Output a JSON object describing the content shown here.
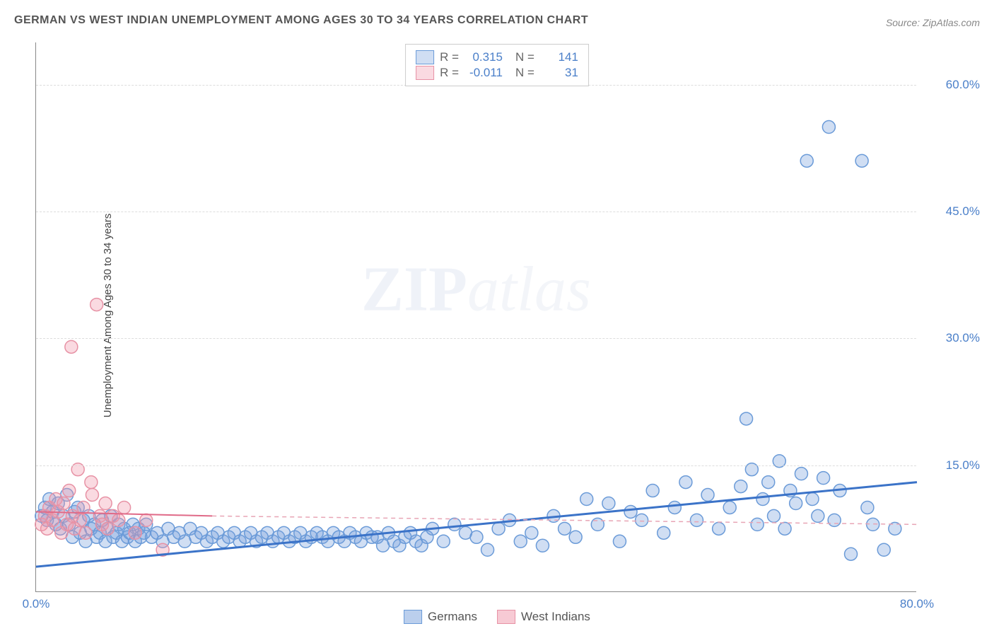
{
  "title": "GERMAN VS WEST INDIAN UNEMPLOYMENT AMONG AGES 30 TO 34 YEARS CORRELATION CHART",
  "source": "Source: ZipAtlas.com",
  "y_axis_label": "Unemployment Among Ages 30 to 34 years",
  "watermark_zip": "ZIP",
  "watermark_atlas": "atlas",
  "chart": {
    "type": "scatter",
    "xlim": [
      0,
      80
    ],
    "ylim": [
      0,
      65
    ],
    "x_ticks": [
      {
        "v": 0,
        "label": "0.0%"
      },
      {
        "v": 80,
        "label": "80.0%"
      }
    ],
    "y_ticks": [
      {
        "v": 15,
        "label": "15.0%"
      },
      {
        "v": 30,
        "label": "30.0%"
      },
      {
        "v": 45,
        "label": "45.0%"
      },
      {
        "v": 60,
        "label": "60.0%"
      }
    ],
    "grid_color": "#dddddd",
    "axis_color": "#888888",
    "background_color": "#ffffff",
    "marker_radius": 9,
    "marker_stroke_width": 1.5,
    "series": [
      {
        "name": "Germans",
        "fill": "rgba(120,160,220,0.35)",
        "stroke": "#6b9bd8",
        "r_label": "R =",
        "r_value": "0.315",
        "n_label": "N =",
        "n_value": "141",
        "trend_solid": {
          "x1": 0,
          "y1": 3,
          "x2": 80,
          "y2": 13,
          "color": "#3b73c8",
          "width": 3
        },
        "points": [
          [
            0.5,
            9
          ],
          [
            0.8,
            10
          ],
          [
            1,
            8.5
          ],
          [
            1.2,
            11
          ],
          [
            1.5,
            9.5
          ],
          [
            1.8,
            8
          ],
          [
            2,
            10.5
          ],
          [
            2.2,
            7.5
          ],
          [
            2.5,
            9
          ],
          [
            2.8,
            11.5
          ],
          [
            3,
            8
          ],
          [
            3.3,
            6.5
          ],
          [
            3.5,
            9.5
          ],
          [
            3.8,
            10
          ],
          [
            4,
            7
          ],
          [
            4.3,
            8.5
          ],
          [
            4.5,
            6
          ],
          [
            4.8,
            9
          ],
          [
            5,
            7.5
          ],
          [
            5.3,
            8
          ],
          [
            5.5,
            6.5
          ],
          [
            5.8,
            7
          ],
          [
            6,
            8.5
          ],
          [
            6.3,
            6
          ],
          [
            6.5,
            7.5
          ],
          [
            6.8,
            9
          ],
          [
            7,
            6.5
          ],
          [
            7.3,
            7
          ],
          [
            7.5,
            8
          ],
          [
            7.8,
            6
          ],
          [
            8,
            7.5
          ],
          [
            8.3,
            6.5
          ],
          [
            8.5,
            7
          ],
          [
            8.8,
            8
          ],
          [
            9,
            6
          ],
          [
            9.3,
            7.5
          ],
          [
            9.5,
            6.5
          ],
          [
            9.8,
            7
          ],
          [
            10,
            8
          ],
          [
            10.5,
            6.5
          ],
          [
            11,
            7
          ],
          [
            11.5,
            6
          ],
          [
            12,
            7.5
          ],
          [
            12.5,
            6.5
          ],
          [
            13,
            7
          ],
          [
            13.5,
            6
          ],
          [
            14,
            7.5
          ],
          [
            14.5,
            6.5
          ],
          [
            15,
            7
          ],
          [
            15.5,
            6
          ],
          [
            16,
            6.5
          ],
          [
            16.5,
            7
          ],
          [
            17,
            6
          ],
          [
            17.5,
            6.5
          ],
          [
            18,
            7
          ],
          [
            18.5,
            6
          ],
          [
            19,
            6.5
          ],
          [
            19.5,
            7
          ],
          [
            20,
            6
          ],
          [
            20.5,
            6.5
          ],
          [
            21,
            7
          ],
          [
            21.5,
            6
          ],
          [
            22,
            6.5
          ],
          [
            22.5,
            7
          ],
          [
            23,
            6
          ],
          [
            23.5,
            6.5
          ],
          [
            24,
            7
          ],
          [
            24.5,
            6
          ],
          [
            25,
            6.5
          ],
          [
            25.5,
            7
          ],
          [
            26,
            6.5
          ],
          [
            26.5,
            6
          ],
          [
            27,
            7
          ],
          [
            27.5,
            6.5
          ],
          [
            28,
            6
          ],
          [
            28.5,
            7
          ],
          [
            29,
            6.5
          ],
          [
            29.5,
            6
          ],
          [
            30,
            7
          ],
          [
            30.5,
            6.5
          ],
          [
            31,
            6.5
          ],
          [
            31.5,
            5.5
          ],
          [
            32,
            7
          ],
          [
            32.5,
            6
          ],
          [
            33,
            5.5
          ],
          [
            33.5,
            6.5
          ],
          [
            34,
            7
          ],
          [
            34.5,
            6
          ],
          [
            35,
            5.5
          ],
          [
            35.5,
            6.5
          ],
          [
            36,
            7.5
          ],
          [
            37,
            6
          ],
          [
            38,
            8
          ],
          [
            39,
            7
          ],
          [
            40,
            6.5
          ],
          [
            41,
            5
          ],
          [
            42,
            7.5
          ],
          [
            43,
            8.5
          ],
          [
            44,
            6
          ],
          [
            45,
            7
          ],
          [
            46,
            5.5
          ],
          [
            47,
            9
          ],
          [
            48,
            7.5
          ],
          [
            49,
            6.5
          ],
          [
            50,
            11
          ],
          [
            51,
            8
          ],
          [
            52,
            10.5
          ],
          [
            53,
            6
          ],
          [
            54,
            9.5
          ],
          [
            55,
            8.5
          ],
          [
            56,
            12
          ],
          [
            57,
            7
          ],
          [
            58,
            10
          ],
          [
            59,
            13
          ],
          [
            60,
            8.5
          ],
          [
            61,
            11.5
          ],
          [
            62,
            7.5
          ],
          [
            63,
            10
          ],
          [
            64,
            12.5
          ],
          [
            64.5,
            20.5
          ],
          [
            65,
            14.5
          ],
          [
            65.5,
            8
          ],
          [
            66,
            11
          ],
          [
            66.5,
            13
          ],
          [
            67,
            9
          ],
          [
            67.5,
            15.5
          ],
          [
            68,
            7.5
          ],
          [
            68.5,
            12
          ],
          [
            69,
            10.5
          ],
          [
            69.5,
            14
          ],
          [
            70,
            51
          ],
          [
            70.5,
            11
          ],
          [
            71,
            9
          ],
          [
            71.5,
            13.5
          ],
          [
            72,
            55
          ],
          [
            72.5,
            8.5
          ],
          [
            73,
            12
          ],
          [
            74,
            4.5
          ],
          [
            75,
            51
          ],
          [
            75.5,
            10
          ],
          [
            76,
            8
          ],
          [
            77,
            5
          ],
          [
            78,
            7.5
          ]
        ]
      },
      {
        "name": "West Indians",
        "fill": "rgba(240,150,170,0.35)",
        "stroke": "#e792a5",
        "r_label": "R =",
        "r_value": "-0.011",
        "n_label": "N =",
        "n_value": "31",
        "trend_solid": {
          "x1": 0,
          "y1": 9.5,
          "x2": 16,
          "y2": 9,
          "color": "#e06a88",
          "width": 2
        },
        "trend_dashed": {
          "x1": 16,
          "y1": 9,
          "x2": 80,
          "y2": 8,
          "color": "#e8a5b5",
          "width": 1.5,
          "dash": "6,5"
        },
        "points": [
          [
            0.5,
            8
          ],
          [
            0.8,
            9
          ],
          [
            1,
            7.5
          ],
          [
            1.2,
            10
          ],
          [
            1.5,
            8.5
          ],
          [
            1.8,
            11
          ],
          [
            2,
            9.5
          ],
          [
            2.3,
            7
          ],
          [
            2.5,
            10.5
          ],
          [
            2.8,
            8
          ],
          [
            3,
            12
          ],
          [
            3.3,
            9
          ],
          [
            3.5,
            7.5
          ],
          [
            3.8,
            14.5
          ],
          [
            4,
            8.5
          ],
          [
            4.3,
            10
          ],
          [
            4.5,
            7
          ],
          [
            5,
            13
          ],
          [
            5.1,
            11.5
          ],
          [
            5.5,
            34
          ],
          [
            5.8,
            9
          ],
          [
            6,
            8
          ],
          [
            6.3,
            10.5
          ],
          [
            6.5,
            7.5
          ],
          [
            3.2,
            29
          ],
          [
            7,
            9
          ],
          [
            7.5,
            8.5
          ],
          [
            8,
            10
          ],
          [
            9,
            7
          ],
          [
            10,
            8.5
          ],
          [
            11.5,
            5
          ]
        ]
      }
    ]
  },
  "bottom_legend": [
    {
      "label": "Germans",
      "fill": "rgba(120,160,220,0.5)",
      "stroke": "#6b9bd8"
    },
    {
      "label": "West Indians",
      "fill": "rgba(240,150,170,0.5)",
      "stroke": "#e792a5"
    }
  ]
}
